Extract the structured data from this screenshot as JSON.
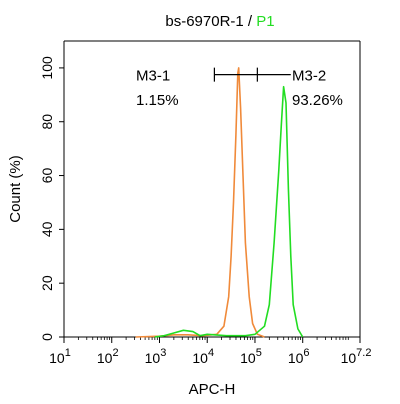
{
  "colors": {
    "sample": "#f08a3a",
    "p1": "#22dd22",
    "axis": "#000000",
    "gate": "#000000"
  },
  "chart_data": {
    "type": "line",
    "title_prefix": "bs-6970R-1 / ",
    "title_highlight": "P1",
    "xlabel": "APC-H",
    "ylabel": "Count  (%)",
    "xscale": "log",
    "xlim": [
      1,
      7.2
    ],
    "ylim": [
      0,
      110
    ],
    "x_ticks": [
      {
        "base": "10",
        "exp": "1",
        "v": 1
      },
      {
        "base": "10",
        "exp": "2",
        "v": 2
      },
      {
        "base": "10",
        "exp": "3",
        "v": 3
      },
      {
        "base": "10",
        "exp": "4",
        "v": 4
      },
      {
        "base": "10",
        "exp": "5",
        "v": 5
      },
      {
        "base": "10",
        "exp": "6",
        "v": 6
      },
      {
        "base": "10",
        "exp": "7.2",
        "v": 7.2
      }
    ],
    "y_ticks": [
      0,
      20,
      40,
      60,
      80,
      100
    ],
    "gates": [
      {
        "name": "M3-1",
        "value": "1.15%",
        "x_start": 4.15,
        "x_end": 5.05
      },
      {
        "name": "M3-2",
        "value": "93.26%",
        "x_start": 5.05,
        "x_end": 5.75
      }
    ],
    "series": [
      {
        "key": "sample",
        "points": [
          [
            2.5,
            0
          ],
          [
            3.0,
            0.3
          ],
          [
            3.3,
            0.8
          ],
          [
            3.6,
            0.8
          ],
          [
            3.9,
            0.5
          ],
          [
            4.2,
            1
          ],
          [
            4.35,
            4
          ],
          [
            4.45,
            15
          ],
          [
            4.5,
            30
          ],
          [
            4.55,
            50
          ],
          [
            4.6,
            75
          ],
          [
            4.64,
            98
          ],
          [
            4.66,
            100
          ],
          [
            4.7,
            85
          ],
          [
            4.75,
            60
          ],
          [
            4.8,
            35
          ],
          [
            4.88,
            15
          ],
          [
            4.95,
            5
          ],
          [
            5.05,
            1
          ],
          [
            5.2,
            0
          ]
        ]
      },
      {
        "key": "p1",
        "points": [
          [
            2.9,
            0
          ],
          [
            3.1,
            0.5
          ],
          [
            3.3,
            1.5
          ],
          [
            3.5,
            2.5
          ],
          [
            3.7,
            2
          ],
          [
            3.85,
            0.5
          ],
          [
            4.0,
            1
          ],
          [
            4.4,
            0.5
          ],
          [
            4.8,
            0.5
          ],
          [
            5.0,
            1
          ],
          [
            5.2,
            4
          ],
          [
            5.3,
            12
          ],
          [
            5.4,
            35
          ],
          [
            5.5,
            62
          ],
          [
            5.55,
            78
          ],
          [
            5.6,
            93
          ],
          [
            5.65,
            87
          ],
          [
            5.7,
            55
          ],
          [
            5.75,
            30
          ],
          [
            5.8,
            12
          ],
          [
            5.9,
            3
          ],
          [
            6.0,
            0
          ]
        ]
      }
    ]
  }
}
